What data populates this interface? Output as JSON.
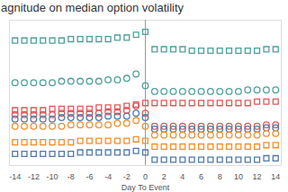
{
  "chart_data": {
    "type": "scatter",
    "title": "agnitude on median option volatility",
    "x_label": "Day To Event",
    "x": [
      -14,
      -13,
      -12,
      -11,
      -10,
      -9,
      -8,
      -7,
      -6,
      -5,
      -4,
      -3,
      -2,
      -1,
      0,
      1,
      2,
      3,
      4,
      5,
      6,
      7,
      8,
      9,
      10,
      11,
      12,
      13,
      14
    ],
    "xlim": [
      -14.6,
      14.6
    ],
    "xticks": [
      -14,
      -12,
      -10,
      -8,
      -6,
      -4,
      -2,
      0,
      2,
      4,
      6,
      8,
      10,
      12,
      14
    ],
    "ylim": [
      0,
      100
    ],
    "tick_labels": "x",
    "grid": false,
    "event_line": 0,
    "series": [
      {
        "color": "#4e9f9a",
        "marker": "square",
        "values": [
          86,
          86,
          86,
          86,
          86,
          86,
          87,
          87,
          87,
          87,
          87,
          88,
          88,
          90,
          92,
          80,
          80,
          80,
          80,
          79,
          79,
          79,
          79,
          79,
          79,
          79,
          79,
          80,
          80
        ]
      },
      {
        "color": "#4e9f9a",
        "marker": "circle",
        "values": [
          57,
          57,
          57,
          57,
          57,
          58,
          58,
          58,
          58,
          58,
          59,
          59,
          60,
          63,
          55,
          51,
          51,
          51,
          51,
          51,
          51,
          51,
          51,
          51,
          51,
          52,
          52,
          52,
          52
        ]
      },
      {
        "color": "#e15759",
        "marker": "square",
        "values": [
          38,
          38,
          38,
          38,
          39,
          39,
          39,
          39,
          39,
          40,
          40,
          40,
          41,
          42,
          43,
          43,
          43,
          43,
          43,
          43,
          43,
          43,
          43,
          43,
          43,
          43,
          44,
          44,
          44
        ]
      },
      {
        "color": "#e15759",
        "marker": "circle",
        "values": [
          35,
          35,
          35,
          35,
          35,
          36,
          36,
          36,
          36,
          36,
          37,
          37,
          38,
          41,
          36,
          27,
          27,
          27,
          27,
          27,
          27,
          27,
          27,
          27,
          27,
          27,
          27,
          28,
          28
        ]
      },
      {
        "color": "#4e79a7",
        "marker": "circle",
        "values": [
          32,
          32,
          32,
          32,
          32,
          33,
          33,
          33,
          33,
          33,
          34,
          34,
          34,
          36,
          33,
          25,
          25,
          25,
          25,
          25,
          25,
          25,
          25,
          25,
          25,
          25,
          25,
          26,
          26
        ]
      },
      {
        "color": "#f28e2b",
        "marker": "circle",
        "values": [
          27,
          27,
          27,
          27,
          27,
          27,
          28,
          28,
          28,
          28,
          28,
          29,
          29,
          31,
          27,
          21,
          21,
          21,
          21,
          21,
          21,
          21,
          21,
          21,
          21,
          21,
          21,
          22,
          22
        ]
      },
      {
        "color": "#f28e2b",
        "marker": "square",
        "values": [
          16,
          16,
          16,
          16,
          16,
          16,
          16,
          17,
          17,
          17,
          17,
          17,
          17,
          18,
          17,
          13,
          13,
          13,
          13,
          13,
          13,
          13,
          13,
          13,
          13,
          13,
          13,
          14,
          14
        ]
      },
      {
        "color": "#4e79a7",
        "marker": "square",
        "values": [
          8,
          8,
          8,
          8,
          8,
          8,
          8,
          9,
          9,
          9,
          9,
          9,
          9,
          10,
          9,
          4,
          4,
          4,
          4,
          4,
          4,
          4,
          4,
          4,
          4,
          4,
          4,
          5,
          5
        ]
      }
    ]
  }
}
